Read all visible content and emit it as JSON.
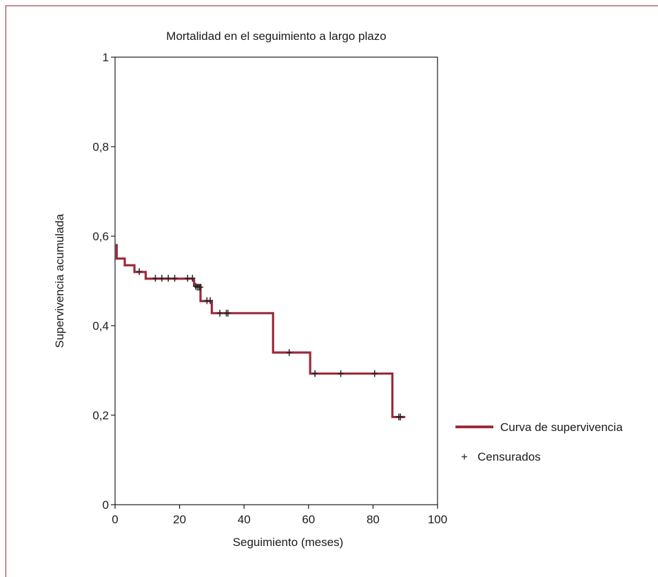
{
  "chart_data": {
    "type": "line",
    "title": "Mortalidad en el seguimiento a largo plazo",
    "xlabel": "Seguimiento (meses)",
    "ylabel": "Supervivencia acumulada",
    "xlim": [
      0,
      100
    ],
    "ylim": [
      0,
      1
    ],
    "x_ticks": [
      0,
      20,
      40,
      60,
      80,
      100
    ],
    "y_ticks": [
      0,
      0.2,
      0.4,
      0.6,
      0.8,
      1
    ],
    "x_tick_labels": [
      "0",
      "20",
      "40",
      "60",
      "80",
      "100"
    ],
    "y_tick_labels": [
      "0",
      "0,2",
      "0,4",
      "0,6",
      "0,8",
      "1"
    ],
    "grid": false,
    "legend_position": "right",
    "series": [
      {
        "name": "Curva de supervivencia",
        "color": "#9e2a3b",
        "steps": [
          [
            0,
            0.58
          ],
          [
            0.5,
            0.55
          ],
          [
            3,
            0.535
          ],
          [
            6,
            0.52
          ],
          [
            9.5,
            0.505
          ],
          [
            24.5,
            0.49
          ],
          [
            26.5,
            0.455
          ],
          [
            30,
            0.428
          ],
          [
            49,
            0.34
          ],
          [
            60.5,
            0.293
          ],
          [
            86,
            0.196
          ],
          [
            90,
            0.196
          ]
        ]
      }
    ],
    "censored": {
      "name": "Censurados",
      "marker": "+",
      "points": [
        [
          7.5,
          0.521
        ],
        [
          12.5,
          0.506
        ],
        [
          14.5,
          0.506
        ],
        [
          16.5,
          0.506
        ],
        [
          18.5,
          0.506
        ],
        [
          22.5,
          0.506
        ],
        [
          24,
          0.506
        ],
        [
          25,
          0.488
        ],
        [
          25.5,
          0.486
        ],
        [
          26,
          0.486
        ],
        [
          26.5,
          0.486
        ],
        [
          28.5,
          0.456
        ],
        [
          29.5,
          0.456
        ],
        [
          32.5,
          0.428
        ],
        [
          34.5,
          0.428
        ],
        [
          35,
          0.428
        ],
        [
          54,
          0.34
        ],
        [
          62,
          0.293
        ],
        [
          70,
          0.293
        ],
        [
          80.5,
          0.293
        ],
        [
          88,
          0.196
        ],
        [
          88.5,
          0.196
        ]
      ]
    }
  }
}
